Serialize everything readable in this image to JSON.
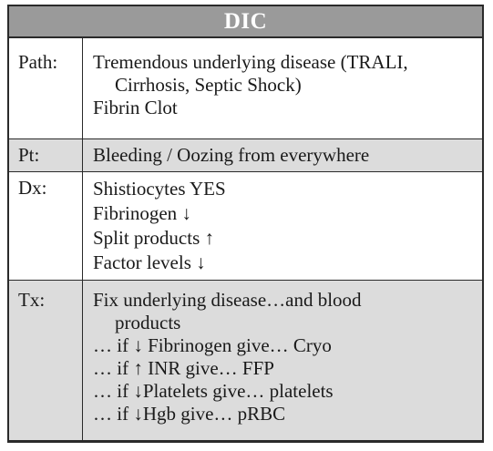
{
  "title": "DIC",
  "rows": {
    "path": {
      "label": "Path:",
      "lines": [
        "Tremendous underlying disease (TRALI,",
        "Cirrhosis, Septic Shock)",
        "Fibrin Clot"
      ]
    },
    "pt": {
      "label": "Pt:",
      "lines": [
        "Bleeding / Oozing from everywhere"
      ]
    },
    "dx": {
      "label": "Dx:",
      "lines": [
        "Shistiocytes YES",
        "Fibrinogen ↓",
        "Split products ↑",
        "Factor levels ↓"
      ]
    },
    "tx": {
      "label": "Tx:",
      "lines": [
        "Fix underlying disease…and blood",
        "products",
        "… if ↓ Fibrinogen give… Cryo",
        "… if ↑ INR give… FFP",
        "… if ↓Platelets give… platelets",
        "… if ↓Hgb give… pRBC"
      ]
    }
  }
}
